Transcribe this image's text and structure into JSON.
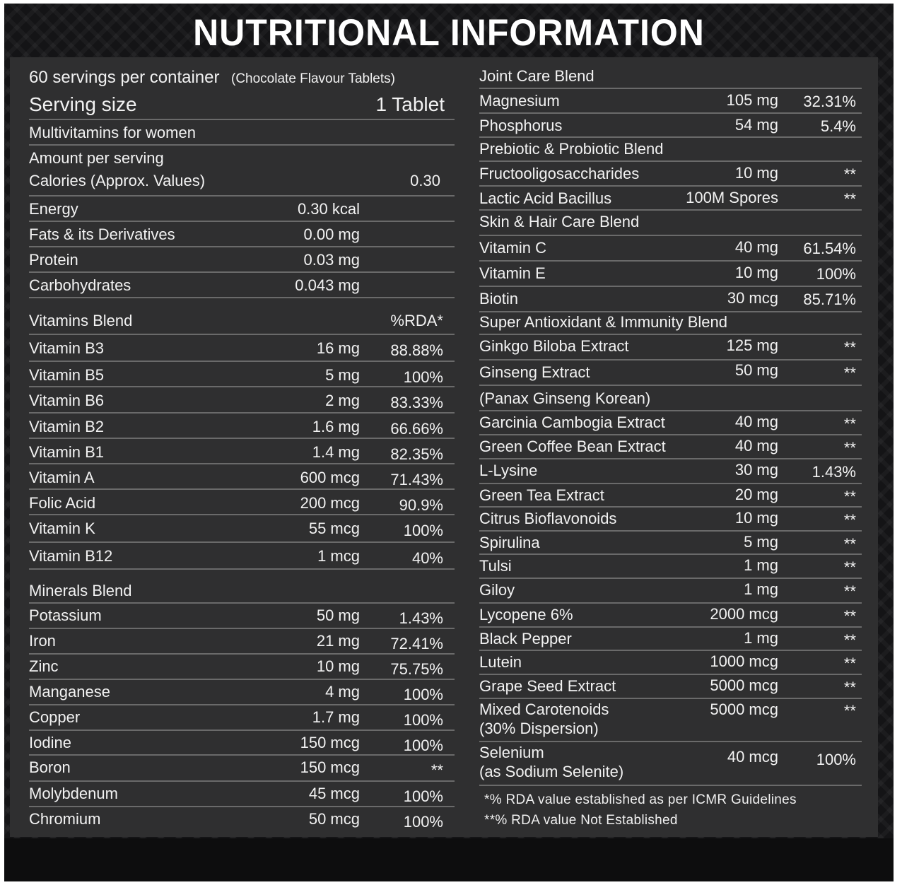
{
  "title": "NUTRITIONAL INFORMATION",
  "left": {
    "servings": {
      "text": "60 servings per container",
      "sub": "(Chocolate Flavour Tablets)"
    },
    "serving_size": {
      "label": "Serving size",
      "value": "1 Tablet"
    },
    "product": "Multivitamins for women",
    "amount": {
      "line1": "Amount per serving",
      "line2": "Calories (Approx. Values)",
      "value": "0.30"
    },
    "basics": [
      {
        "name": "Energy",
        "amount": "0.30 kcal"
      },
      {
        "name": "Fats & its Derivatives",
        "amount": "0.00 mg"
      },
      {
        "name": "Protein",
        "amount": "0.03 mg"
      },
      {
        "name": "Carbohydrates",
        "amount": "0.043 mg"
      }
    ],
    "vitamins": {
      "header": "Vitamins Blend",
      "rda_header": "%RDA*",
      "items": [
        {
          "name": "Vitamin B3",
          "amount": "16 mg",
          "rda": "88.88%"
        },
        {
          "name": "Vitamin B5",
          "amount": "5 mg",
          "rda": "100%"
        },
        {
          "name": "Vitamin B6",
          "amount": "2 mg",
          "rda": "83.33%"
        },
        {
          "name": "Vitamin B2",
          "amount": "1.6 mg",
          "rda": "66.66%"
        },
        {
          "name": "Vitamin B1",
          "amount": "1.4 mg",
          "rda": "82.35%"
        },
        {
          "name": "Vitamin A",
          "amount": "600 mcg",
          "rda": "71.43%"
        },
        {
          "name": "Folic Acid",
          "amount": "200 mcg",
          "rda": "90.9%"
        },
        {
          "name": "Vitamin K",
          "amount": "55 mcg",
          "rda": "100%"
        },
        {
          "name": "Vitamin B12",
          "amount": "1 mcg",
          "rda": "40%"
        }
      ]
    },
    "minerals": {
      "header": "Minerals Blend",
      "items": [
        {
          "name": "Potassium",
          "amount": "50 mg",
          "rda": "1.43%"
        },
        {
          "name": "Iron",
          "amount": "21 mg",
          "rda": "72.41%"
        },
        {
          "name": "Zinc",
          "amount": "10 mg",
          "rda": "75.75%"
        },
        {
          "name": "Manganese",
          "amount": "4 mg",
          "rda": "100%"
        },
        {
          "name": "Copper",
          "amount": "1.7 mg",
          "rda": "100%"
        },
        {
          "name": "Iodine",
          "amount": "150 mcg",
          "rda": "100%"
        },
        {
          "name": "Boron",
          "amount": "150 mcg",
          "rda": "**"
        },
        {
          "name": "Molybdenum",
          "amount": "45 mcg",
          "rda": "100%"
        },
        {
          "name": "Chromium",
          "amount": "50 mcg",
          "rda": "100%"
        }
      ]
    }
  },
  "right": {
    "joint": {
      "header": "Joint Care Blend",
      "items": [
        {
          "name": "Magnesium",
          "amount": "105 mg",
          "rda": "32.31%"
        },
        {
          "name": "Phosphorus",
          "amount": "54 mg",
          "rda": "5.4%"
        }
      ]
    },
    "prebiotic": {
      "header": "Prebiotic & Probiotic Blend",
      "items": [
        {
          "name": "Fructooligosaccharides",
          "amount": "10 mg",
          "rda": "**"
        },
        {
          "name": "Lactic Acid Bacillus",
          "amount": "100M  Spores",
          "rda": "**"
        }
      ]
    },
    "skin": {
      "header": "Skin & Hair Care Blend",
      "items": [
        {
          "name": "Vitamin C",
          "amount": "40 mg",
          "rda": "61.54%"
        },
        {
          "name": "Vitamin E",
          "amount": "10 mg",
          "rda": "100%"
        },
        {
          "name": "Biotin",
          "amount": "30 mcg",
          "rda": "85.71%"
        }
      ]
    },
    "antioxidant": {
      "header": "Super Antioxidant & Immunity Blend",
      "items": [
        {
          "name": "Ginkgo Biloba Extract",
          "amount": "125 mg",
          "rda": "**"
        },
        {
          "name": "Ginseng Extract",
          "name2": "(Panax Ginseng Korean)",
          "amount": "50 mg",
          "rda": "**"
        },
        {
          "name": "Garcinia Cambogia Extract",
          "amount": "40 mg",
          "rda": "**"
        },
        {
          "name": "Green Coffee Bean Extract",
          "amount": "40 mg",
          "rda": "**"
        },
        {
          "name": "L-Lysine",
          "amount": "30 mg",
          "rda": "1.43%"
        },
        {
          "name": "Green Tea Extract",
          "amount": "20 mg",
          "rda": "**"
        },
        {
          "name": "Citrus Bioflavonoids",
          "amount": "10 mg",
          "rda": "**"
        },
        {
          "name": "Spirulina",
          "amount": "5 mg",
          "rda": "**"
        },
        {
          "name": "Tulsi",
          "amount": "1 mg",
          "rda": "**"
        },
        {
          "name": "Giloy",
          "amount": "1 mg",
          "rda": "**"
        },
        {
          "name": "Lycopene 6%",
          "amount": "2000 mcg",
          "rda": "**"
        },
        {
          "name": "Black Pepper",
          "amount": "1 mg",
          "rda": "**"
        },
        {
          "name": "Lutein",
          "amount": "1000 mcg",
          "rda": "**"
        },
        {
          "name": "Grape Seed Extract",
          "amount": "5000 mcg",
          "rda": "**"
        },
        {
          "name": "Mixed Carotenoids",
          "name2": "(30% Dispersion)",
          "amount": "5000 mcg",
          "rda": "**"
        },
        {
          "name": "Selenium",
          "name2": "(as Sodium Selenite)",
          "amount": "40 mcg",
          "rda": "100%"
        }
      ]
    },
    "footnotes": [
      "*% RDA value established as per ICMR Guidelines",
      "**% RDA value Not Established"
    ]
  }
}
